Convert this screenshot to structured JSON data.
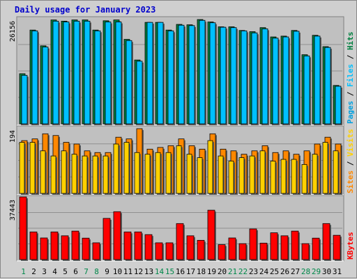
{
  "title": "Daily usage for January 2023",
  "colors": {
    "background": "#c0c0c0",
    "title": "#0000cc",
    "hits": "#008040",
    "files": "#00c0ff",
    "pages": "#00a0e0",
    "visits": "#ffd000",
    "sites": "#ff8800",
    "kbytes": "#ff0000"
  },
  "chart_data": {
    "type": "bar",
    "categories": [
      "1",
      "2",
      "3",
      "4",
      "5",
      "6",
      "7",
      "8",
      "9",
      "10",
      "11",
      "12",
      "13",
      "14",
      "15",
      "16",
      "17",
      "18",
      "19",
      "20",
      "21",
      "22",
      "23",
      "24",
      "25",
      "26",
      "27",
      "28",
      "29",
      "30",
      "31"
    ],
    "weekend_days": [
      "1",
      "7",
      "8",
      "14",
      "15",
      "21",
      "22",
      "28",
      "29"
    ],
    "panels": [
      {
        "name": "hits-files-pages",
        "max_label": "26156",
        "ymax": 26156,
        "right_label": [
          "Pages",
          "Files",
          "Hits"
        ],
        "series": [
          {
            "name": "Hits",
            "values": [
              12400,
              23200,
              19300,
              25700,
              25400,
              25700,
              25700,
              23200,
              25500,
              25700,
              20900,
              15800,
              25100,
              25100,
              23200,
              24600,
              24500,
              25800,
              25200,
              24000,
              24000,
              23100,
              22800,
              23800,
              21500,
              21700,
              23100,
              17100,
              21900,
              19100,
              9500
            ]
          },
          {
            "name": "Files",
            "values": [
              12000,
              23000,
              19000,
              25400,
              25200,
              25400,
              25400,
              23000,
              25200,
              25200,
              20600,
              15500,
              25100,
              25100,
              23000,
              24400,
              24300,
              25600,
              25000,
              23900,
              23800,
              23000,
              22500,
              23500,
              21200,
              21500,
              22900,
              16800,
              21700,
              18900,
              9300
            ]
          }
        ]
      },
      {
        "name": "visits-sites",
        "max_label": "194",
        "ymax": 194,
        "right_label": [
          "Sites",
          "Visits"
        ],
        "series": [
          {
            "name": "Visits",
            "values": [
              150,
              150,
              125,
              110,
              125,
              115,
              110,
              110,
              110,
              145,
              150,
              120,
              115,
              120,
              120,
              140,
              115,
              105,
              155,
              110,
              95,
              105,
              110,
              125,
              95,
              100,
              100,
              85,
              115,
              150,
              125
            ]
          },
          {
            "name": "Sites",
            "values": [
              155,
              160,
              175,
              170,
              150,
              145,
              125,
              120,
              120,
              165,
              160,
              190,
              130,
              135,
              140,
              160,
              140,
              130,
              175,
              130,
              125,
              115,
              125,
              140,
              120,
              125,
              115,
              125,
              145,
              165,
              145
            ]
          }
        ]
      },
      {
        "name": "kbytes",
        "max_label": "37443",
        "ymax": 37443,
        "right_label": [
          "KBytes"
        ],
        "series": [
          {
            "name": "KBytes",
            "values": [
              37443,
              16500,
              12900,
              16500,
              14200,
              17000,
              12800,
              10000,
              24600,
              28600,
              16500,
              16500,
              14900,
              10000,
              10000,
              21500,
              14200,
              11500,
              29500,
              8900,
              12900,
              9500,
              18300,
              9800,
              16000,
              14200,
              17000,
              9500,
              12800,
              21500,
              14500
            ]
          }
        ]
      }
    ]
  }
}
